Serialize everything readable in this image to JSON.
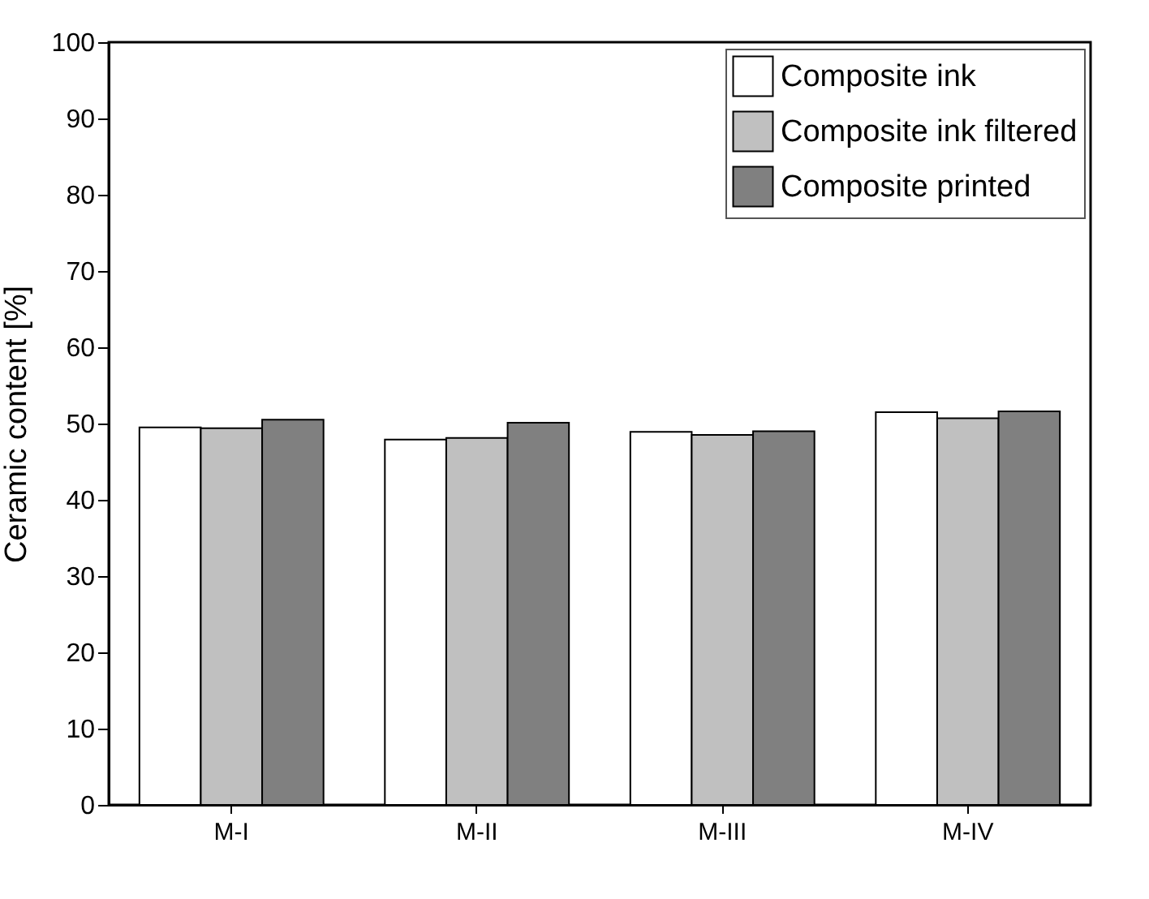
{
  "chart_data": {
    "type": "bar",
    "ylabel": "Ceramic content [%]",
    "categories": [
      "M-I",
      "M-II",
      "M-III",
      "M-IV"
    ],
    "series": [
      {
        "name": "Composite ink",
        "color": "#ffffff",
        "values": [
          49.5,
          47.9,
          48.9,
          51.5
        ]
      },
      {
        "name": "Composite ink filtered",
        "color": "#c0c0c0",
        "values": [
          49.4,
          48.1,
          48.5,
          50.7
        ]
      },
      {
        "name": "Composite printed",
        "color": "#808080",
        "values": [
          50.5,
          50.1,
          49.0,
          51.6
        ]
      }
    ],
    "ylim": [
      0,
      100
    ],
    "yticks": [
      0,
      10,
      20,
      30,
      40,
      50,
      60,
      70,
      80,
      90,
      100
    ],
    "grid": false,
    "legend": "top right"
  }
}
